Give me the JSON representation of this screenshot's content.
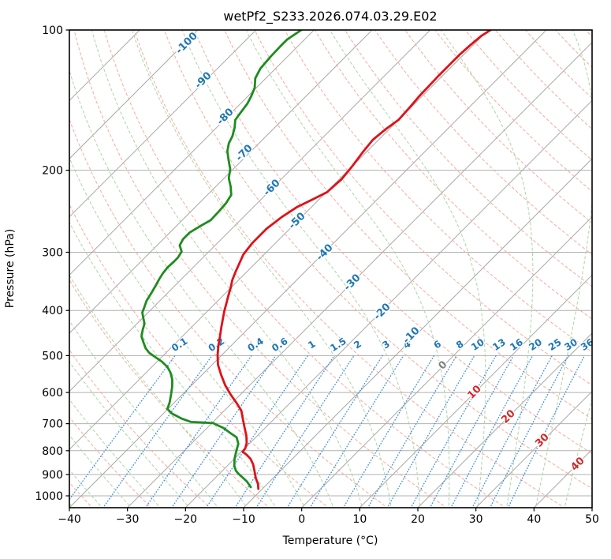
{
  "title": "wetPf2_S233.2026.074.03.29.E02",
  "x_axis": {
    "label": "Temperature (°C)",
    "tick_values": [
      -40,
      -30,
      -20,
      -10,
      0,
      10,
      20,
      30,
      40,
      50
    ],
    "tick_labels": [
      "−40",
      "−30",
      "−20",
      "−10",
      "0",
      "10",
      "20",
      "30",
      "40",
      "50"
    ]
  },
  "y_axis": {
    "label": "Pressure (hPa)",
    "tick_values": [
      100,
      200,
      300,
      400,
      500,
      600,
      700,
      800,
      900,
      1000
    ],
    "tick_labels": [
      "100",
      "200",
      "300",
      "400",
      "500",
      "600",
      "700",
      "800",
      "900",
      "1000"
    ]
  },
  "chart_data": {
    "type": "line",
    "subtype": "skew-t-log-p",
    "title": "wetPf2_S233.2026.074.03.29.E02",
    "xlabel": "Temperature (°C)",
    "ylabel": "Pressure (hPa)",
    "x_range_degC": [
      -40,
      50
    ],
    "pressure_range_hPa": [
      100,
      1050
    ],
    "skew": "45deg",
    "grid": true,
    "legend": "none",
    "series": [
      {
        "name": "temperature",
        "color": "#e01118",
        "units": {
          "p": "hPa",
          "t": "degC"
        },
        "points": [
          [
            966,
            -10.7
          ],
          [
            943,
            -11.6
          ],
          [
            918,
            -12.9
          ],
          [
            883,
            -14.5
          ],
          [
            856,
            -15.8
          ],
          [
            833,
            -17.2
          ],
          [
            816,
            -18.6
          ],
          [
            804,
            -19.8
          ],
          [
            791,
            -19.9
          ],
          [
            770,
            -20.6
          ],
          [
            743,
            -21.9
          ],
          [
            712,
            -23.7
          ],
          [
            682,
            -25.5
          ],
          [
            656,
            -27.1
          ],
          [
            631,
            -29.3
          ],
          [
            607,
            -31.6
          ],
          [
            579,
            -34.2
          ],
          [
            550,
            -36.7
          ],
          [
            523,
            -39.0
          ],
          [
            499,
            -40.7
          ],
          [
            476,
            -42.2
          ],
          [
            455,
            -43.5
          ],
          [
            434,
            -44.9
          ],
          [
            416,
            -46.1
          ],
          [
            400,
            -47.2
          ],
          [
            386,
            -48.1
          ],
          [
            373,
            -49.0
          ],
          [
            358,
            -50.0
          ],
          [
            344,
            -51.1
          ],
          [
            331,
            -51.9
          ],
          [
            319,
            -52.6
          ],
          [
            303,
            -53.6
          ],
          [
            287,
            -54.0
          ],
          [
            267,
            -54.0
          ],
          [
            252,
            -53.4
          ],
          [
            240,
            -52.5
          ],
          [
            231,
            -51.1
          ],
          [
            223,
            -49.9
          ],
          [
            209,
            -49.6
          ],
          [
            196,
            -50.0
          ],
          [
            183,
            -50.6
          ],
          [
            172,
            -51.0
          ],
          [
            163,
            -50.6
          ],
          [
            156,
            -50.0
          ],
          [
            147,
            -50.2
          ],
          [
            139,
            -50.5
          ],
          [
            131,
            -50.6
          ],
          [
            125,
            -50.7
          ],
          [
            119,
            -50.7
          ],
          [
            113,
            -50.7
          ],
          [
            108,
            -50.5
          ],
          [
            103,
            -50.2
          ],
          [
            100,
            -49.6
          ]
        ]
      },
      {
        "name": "dewpoint",
        "color": "#1e8c1e",
        "units": {
          "p": "hPa",
          "t": "degC"
        },
        "points": [
          [
            958,
            -12.3
          ],
          [
            932,
            -13.9
          ],
          [
            914,
            -15.3
          ],
          [
            897,
            -16.7
          ],
          [
            883,
            -17.7
          ],
          [
            862,
            -18.8
          ],
          [
            832,
            -20.0
          ],
          [
            801,
            -21.0
          ],
          [
            773,
            -21.9
          ],
          [
            749,
            -23.3
          ],
          [
            735,
            -24.9
          ],
          [
            715,
            -27.2
          ],
          [
            698,
            -29.8
          ],
          [
            696,
            -31.7
          ],
          [
            694,
            -33.8
          ],
          [
            682,
            -36.1
          ],
          [
            666,
            -38.5
          ],
          [
            651,
            -40.1
          ],
          [
            631,
            -40.8
          ],
          [
            607,
            -41.9
          ],
          [
            583,
            -43.1
          ],
          [
            563,
            -44.3
          ],
          [
            544,
            -45.8
          ],
          [
            529,
            -47.3
          ],
          [
            515,
            -49.2
          ],
          [
            505,
            -50.9
          ],
          [
            493,
            -52.9
          ],
          [
            482,
            -54.3
          ],
          [
            469,
            -55.6
          ],
          [
            455,
            -57.0
          ],
          [
            441,
            -57.9
          ],
          [
            427,
            -58.7
          ],
          [
            416,
            -59.8
          ],
          [
            404,
            -61.0
          ],
          [
            393,
            -61.6
          ],
          [
            381,
            -62.3
          ],
          [
            367,
            -62.8
          ],
          [
            354,
            -63.3
          ],
          [
            343,
            -63.8
          ],
          [
            333,
            -64.2
          ],
          [
            323,
            -64.4
          ],
          [
            314,
            -64.3
          ],
          [
            308,
            -64.3
          ],
          [
            299,
            -64.7
          ],
          [
            290,
            -66.1
          ],
          [
            281,
            -66.6
          ],
          [
            272,
            -66.6
          ],
          [
            264,
            -65.9
          ],
          [
            256,
            -65.1
          ],
          [
            245,
            -65.2
          ],
          [
            235,
            -65.4
          ],
          [
            226,
            -65.9
          ],
          [
            217,
            -67.4
          ],
          [
            208,
            -69.2
          ],
          [
            199,
            -70.5
          ],
          [
            190,
            -72.4
          ],
          [
            182,
            -74.1
          ],
          [
            175,
            -75.2
          ],
          [
            169,
            -75.8
          ],
          [
            162,
            -76.9
          ],
          [
            156,
            -78.1
          ],
          [
            151,
            -78.4
          ],
          [
            144,
            -78.8
          ],
          [
            139,
            -79.4
          ],
          [
            133,
            -80.3
          ],
          [
            127,
            -81.8
          ],
          [
            121,
            -82.6
          ],
          [
            114,
            -82.9
          ],
          [
            108.5,
            -83.0
          ],
          [
            104.8,
            -83.0
          ],
          [
            102.4,
            -82.6
          ],
          [
            100,
            -82.2
          ]
        ]
      }
    ],
    "isotherms": {
      "start": -110,
      "end": 50,
      "step": 10,
      "color": "#a8a8a8"
    },
    "dry_adiabats": {
      "start": -40,
      "end": 200,
      "step": 10,
      "color": "#f5ab9d"
    },
    "moist_adiabats": {
      "start": -45,
      "end": 45,
      "step": 5,
      "color": "#abd6a4"
    },
    "mixing_ratio_lines": {
      "values_g_per_kg": [
        0.1,
        0.2,
        0.4,
        0.6,
        1,
        1.5,
        2,
        3,
        4,
        6,
        8,
        10,
        13,
        16,
        20,
        25,
        30,
        36
      ],
      "labels": [
        "0.1",
        "0.2",
        "0.4",
        "0.6",
        "1",
        "1.5",
        "2",
        "3",
        "4",
        "6",
        "8",
        "10",
        "13",
        "16",
        "20",
        "25",
        "30",
        "36"
      ],
      "color": "#4191d9",
      "label_color": "#2077b4",
      "top_pressure_hPa": 500,
      "label_pressure_hPa": 480
    },
    "isotherm_labels": [
      {
        "t": -100,
        "label": "-100",
        "x": 237,
        "y": 55,
        "color": "#2077b4"
      },
      {
        "t": -90,
        "label": "-90",
        "x": 258,
        "y": 102,
        "color": "#2077b4"
      },
      {
        "t": -80,
        "label": "-80",
        "x": 286,
        "y": 148,
        "color": "#2077b4"
      },
      {
        "t": -70,
        "label": "-70",
        "x": 310,
        "y": 194,
        "color": "#2077b4"
      },
      {
        "t": -60,
        "label": "-60",
        "x": 345,
        "y": 238,
        "color": "#2077b4"
      },
      {
        "t": -50,
        "label": "-50",
        "x": 377,
        "y": 280,
        "color": "#2077b4"
      },
      {
        "t": -40,
        "label": "-40",
        "x": 412,
        "y": 320,
        "color": "#2077b4"
      },
      {
        "t": -30,
        "label": "-30",
        "x": 447,
        "y": 358,
        "color": "#2077b4"
      },
      {
        "t": -20,
        "label": "-20",
        "x": 485,
        "y": 395,
        "color": "#2077b4"
      },
      {
        "t": -10,
        "label": "-10",
        "x": 522,
        "y": 425,
        "color": "#2077b4"
      },
      {
        "t": 0,
        "label": "0",
        "x": 562,
        "y": 463,
        "color": "#7f7f7f"
      },
      {
        "t": 10,
        "label": "10",
        "x": 602,
        "y": 497,
        "color": "#d62728"
      },
      {
        "t": 20,
        "label": "20",
        "x": 645,
        "y": 528,
        "color": "#d62728"
      },
      {
        "t": 30,
        "label": "30",
        "x": 688,
        "y": 558,
        "color": "#d62728"
      },
      {
        "t": 40,
        "label": "40",
        "x": 733,
        "y": 588,
        "color": "#d62728"
      }
    ],
    "gridline_color": "#b0b0b0",
    "border_color": "#000000"
  }
}
